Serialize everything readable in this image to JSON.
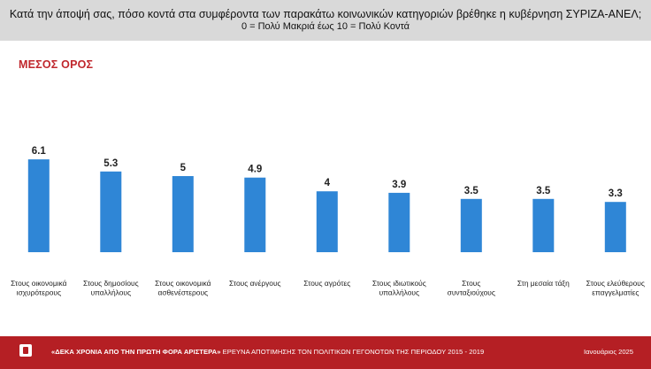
{
  "header": {
    "question": "Κατά την άποψή σας, πόσο κοντά στα συμφέροντα των παρακάτω κοινωνικών κατηγοριών βρέθηκε η κυβέρνηση ΣΥΡΙΖΑ-ΑΝΕΛ;",
    "scale": "0 = Πολύ Μακριά έως 10 = Πολύ Κοντά"
  },
  "chart_data": {
    "type": "bar",
    "title": "ΜΕΣΟΣ ΟΡΟΣ",
    "categories": [
      [
        "Στους οικονομικά",
        "ισχυρότερους"
      ],
      [
        "Στους δημοσίους",
        "υπαλλήλους"
      ],
      [
        "Στους οικονομικά",
        "ασθενέστερους"
      ],
      [
        "Στους ανέργους"
      ],
      [
        "Στους αγρότες"
      ],
      [
        "Στους ιδιωτικούς",
        "υπαλλήλους"
      ],
      [
        "Στους",
        "συνταξιούχους"
      ],
      [
        "Στη μεσαία τάξη"
      ],
      [
        "Στους ελεύθερους",
        "επαγγελματίες"
      ]
    ],
    "values": [
      6.1,
      5.3,
      5,
      4.9,
      4,
      3.9,
      3.5,
      3.5,
      3.3
    ],
    "value_labels": [
      "6.1",
      "5.3",
      "5",
      "4.9",
      "4",
      "3.9",
      "3.5",
      "3.5",
      "3.3"
    ],
    "ylim": [
      0,
      10
    ],
    "bar_color": "#2f86d6"
  },
  "footer": {
    "survey_title": "«ΔΕΚΑ ΧΡΟΝΙΑ ΑΠΟ ΤΗΝ ΠΡΩΤΗ ΦΟΡΑ ΑΡΙΣΤΕΡΑ»",
    "survey_subtitle": " ΕΡΕΥΝΑ ΑΠΟΤΙΜΗΣΗΣ ΤΟΝ ΠΟΛΙΤΙΚΩΝ ΓΕΓΟΝΟΤΩΝ ΤΗΣ ΠΕΡΙΟΔΟΥ 2015 - 2019",
    "date": "Ιανουάριος 2025",
    "accent_color": "#b51f24"
  }
}
